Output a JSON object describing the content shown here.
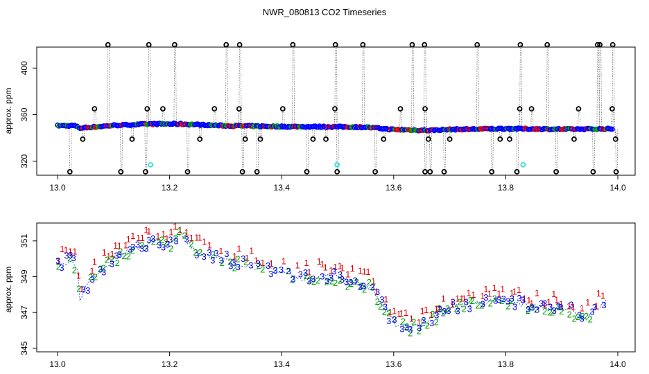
{
  "title": "NWR_080813  CO2 Timeseries",
  "chart_data": [
    {
      "type": "scatter",
      "ylabel": "approx. ppm",
      "xlim": [
        13.0,
        14.0
      ],
      "ylim": [
        308,
        418
      ],
      "x_ticks": [
        "13.0",
        "13.2",
        "13.4",
        "13.6",
        "13.8",
        "14.0"
      ],
      "x_tick_values": [
        13.0,
        13.2,
        13.4,
        13.6,
        13.8,
        14.0
      ],
      "y_ticks": [
        "320",
        "360",
        "400"
      ],
      "y_tick_values": [
        320,
        360,
        400
      ],
      "colors": {
        "black": "#000000",
        "blue": "#0000ff",
        "green": "#00a000",
        "red": "#e00000",
        "cyan": "#33dddd"
      },
      "baseline_series": [
        {
          "x": 13.0,
          "y": 350.5
        },
        {
          "x": 13.03,
          "y": 350.6
        },
        {
          "x": 13.04,
          "y": 348.5
        },
        {
          "x": 13.1,
          "y": 350.8
        },
        {
          "x": 13.14,
          "y": 351.5
        },
        {
          "x": 13.17,
          "y": 352.0
        },
        {
          "x": 13.22,
          "y": 352.0
        },
        {
          "x": 13.3,
          "y": 350.5
        },
        {
          "x": 13.4,
          "y": 349.8
        },
        {
          "x": 13.5,
          "y": 349.6
        },
        {
          "x": 13.55,
          "y": 349.3
        },
        {
          "x": 13.6,
          "y": 347.2
        },
        {
          "x": 13.66,
          "y": 346.5
        },
        {
          "x": 13.7,
          "y": 347.3
        },
        {
          "x": 13.8,
          "y": 348.0
        },
        {
          "x": 13.9,
          "y": 347.5
        },
        {
          "x": 13.99,
          "y": 347.8
        }
      ],
      "spikes_high": [
        13.09,
        13.163,
        13.209,
        13.301,
        13.325,
        13.42,
        13.496,
        13.545,
        13.633,
        13.655,
        13.749,
        13.826,
        13.874,
        13.964,
        13.968,
        13.991
      ],
      "spikes_mid": [
        13.066,
        13.16,
        13.188,
        13.28,
        13.324,
        13.402,
        13.495,
        13.612,
        13.656,
        13.825,
        13.846,
        13.93,
        13.99
      ],
      "spikes_low_mid": [
        13.045,
        13.133,
        13.254,
        13.335,
        13.362,
        13.456,
        13.479,
        13.582,
        13.662,
        13.7,
        13.79,
        13.807,
        13.922,
        13.996
      ],
      "spikes_low": [
        13.022,
        13.113,
        13.157,
        13.232,
        13.33,
        13.356,
        13.445,
        13.499,
        13.567,
        13.656,
        13.665,
        13.69,
        13.775,
        13.82,
        13.89,
        13.956,
        13.997
      ],
      "high_value": 420,
      "mid_value": 365,
      "low_mid_value": 339,
      "low_value": 311,
      "cyan_points": [
        {
          "x": 13.166,
          "y": 317
        },
        {
          "x": 13.499,
          "y": 317
        },
        {
          "x": 13.831,
          "y": 317
        }
      ]
    },
    {
      "type": "scatter",
      "ylabel": "approx. ppm",
      "xlim": [
        13.0,
        14.0
      ],
      "ylim": [
        344.8,
        352.0
      ],
      "x_ticks": [
        "13.0",
        "13.2",
        "13.4",
        "13.6",
        "13.8",
        "14.0"
      ],
      "x_tick_values": [
        13.0,
        13.2,
        13.4,
        13.6,
        13.8,
        14.0
      ],
      "y_ticks": [
        "345",
        "347",
        "349",
        "351"
      ],
      "y_tick_values": [
        345,
        347,
        349,
        351
      ],
      "series": [
        {
          "name": "1",
          "color": "#e00000",
          "offset": 0.45
        },
        {
          "name": "2",
          "color": "#00a000",
          "offset": -0.1
        },
        {
          "name": "3",
          "color": "#0000ff",
          "offset": 0.0
        }
      ],
      "trend": [
        {
          "x": 13.0,
          "y": 349.7
        },
        {
          "x": 13.02,
          "y": 349.9
        },
        {
          "x": 13.035,
          "y": 349.6
        },
        {
          "x": 13.04,
          "y": 347.8
        },
        {
          "x": 13.05,
          "y": 348.4
        },
        {
          "x": 13.07,
          "y": 349.2
        },
        {
          "x": 13.1,
          "y": 350.0
        },
        {
          "x": 13.14,
          "y": 350.6
        },
        {
          "x": 13.17,
          "y": 351.0
        },
        {
          "x": 13.2,
          "y": 350.8
        },
        {
          "x": 13.22,
          "y": 351.4
        },
        {
          "x": 13.25,
          "y": 350.4
        },
        {
          "x": 13.3,
          "y": 349.9
        },
        {
          "x": 13.35,
          "y": 349.6
        },
        {
          "x": 13.4,
          "y": 349.3
        },
        {
          "x": 13.43,
          "y": 348.9
        },
        {
          "x": 13.47,
          "y": 349.1
        },
        {
          "x": 13.5,
          "y": 349.0
        },
        {
          "x": 13.53,
          "y": 348.7
        },
        {
          "x": 13.56,
          "y": 348.4
        },
        {
          "x": 13.58,
          "y": 347.4
        },
        {
          "x": 13.6,
          "y": 346.4
        },
        {
          "x": 13.63,
          "y": 346.2
        },
        {
          "x": 13.66,
          "y": 346.4
        },
        {
          "x": 13.68,
          "y": 347.0
        },
        {
          "x": 13.72,
          "y": 347.4
        },
        {
          "x": 13.76,
          "y": 347.6
        },
        {
          "x": 13.8,
          "y": 347.6
        },
        {
          "x": 13.84,
          "y": 347.4
        },
        {
          "x": 13.88,
          "y": 347.2
        },
        {
          "x": 13.91,
          "y": 347.3
        },
        {
          "x": 13.94,
          "y": 346.6
        },
        {
          "x": 13.96,
          "y": 347.2
        },
        {
          "x": 13.98,
          "y": 347.6
        }
      ]
    }
  ]
}
